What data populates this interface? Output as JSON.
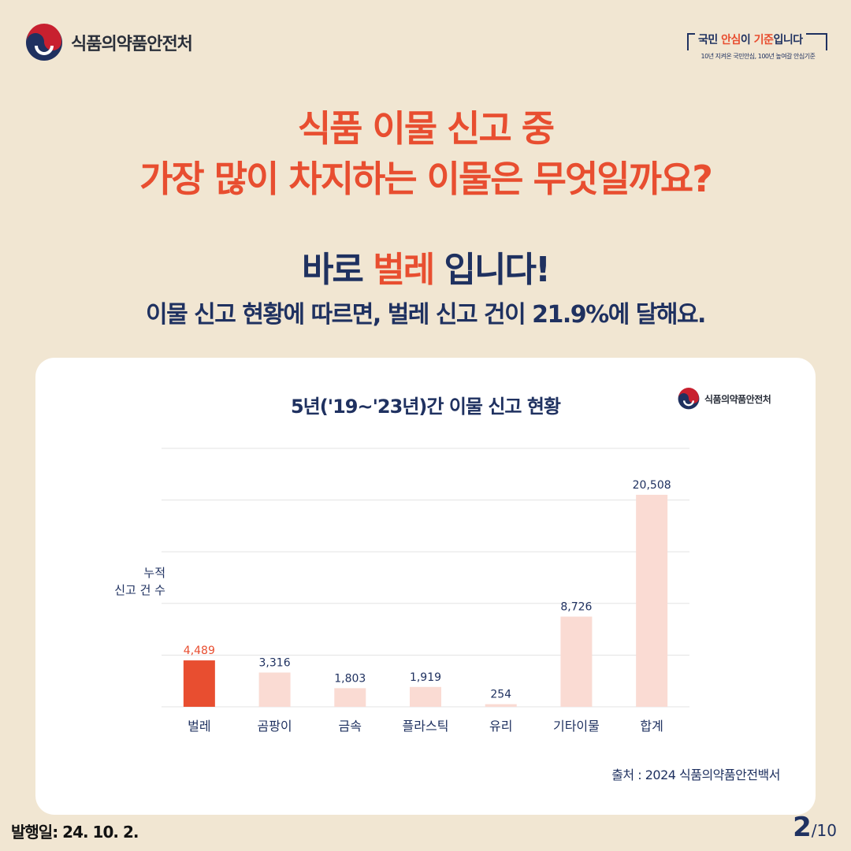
{
  "header": {
    "ministry_name": "식품의약품안전처",
    "slogan_part1": "국민 ",
    "slogan_highlight1": "안심",
    "slogan_part2": "이 ",
    "slogan_highlight2": "기준",
    "slogan_part3": "입니다",
    "slogan_sub": "10년 지켜온 국민안심, 100년 높여갈 안심기준"
  },
  "question": {
    "line1": "식품 이물 신고 중",
    "line2": "가장 많이 차지하는 이물은 무엇일까요?"
  },
  "answer": {
    "prefix": "바로 ",
    "highlight": "벌레",
    "suffix": " 입니다!",
    "detail": "이물 신고 현황에 따르면, 벌레 신고 건이 21.9%에 달해요."
  },
  "card": {
    "logo_text": "식품의약품안전처",
    "source": "출처 : 2024 식품의약품안전백서"
  },
  "chart_data": {
    "type": "bar",
    "title": "5년('19~'23년)간 이물 신고 현황",
    "ylabel": "누적\n신고 건 수",
    "xlabel": "",
    "categories": [
      "벌레",
      "곰팡이",
      "금속",
      "플라스틱",
      "유리",
      "기타이물",
      "합계"
    ],
    "values": [
      4489,
      3316,
      1803,
      1919,
      254,
      8726,
      20508
    ],
    "value_labels": [
      "4,489",
      "3,316",
      "1,803",
      "1,919",
      "254",
      "8,726",
      "20,508"
    ],
    "highlight_index": 0,
    "ylim": [
      0,
      25000
    ],
    "grid": true,
    "colors": {
      "highlight": "#e84e30",
      "bar": "#fadbd3",
      "grid": "#e3e3e3",
      "text": "#1f3160"
    }
  },
  "footer": {
    "pub_date": "발행일: 24. 10. 2.",
    "page_current": "2",
    "page_separator": "/",
    "page_total": "10"
  }
}
